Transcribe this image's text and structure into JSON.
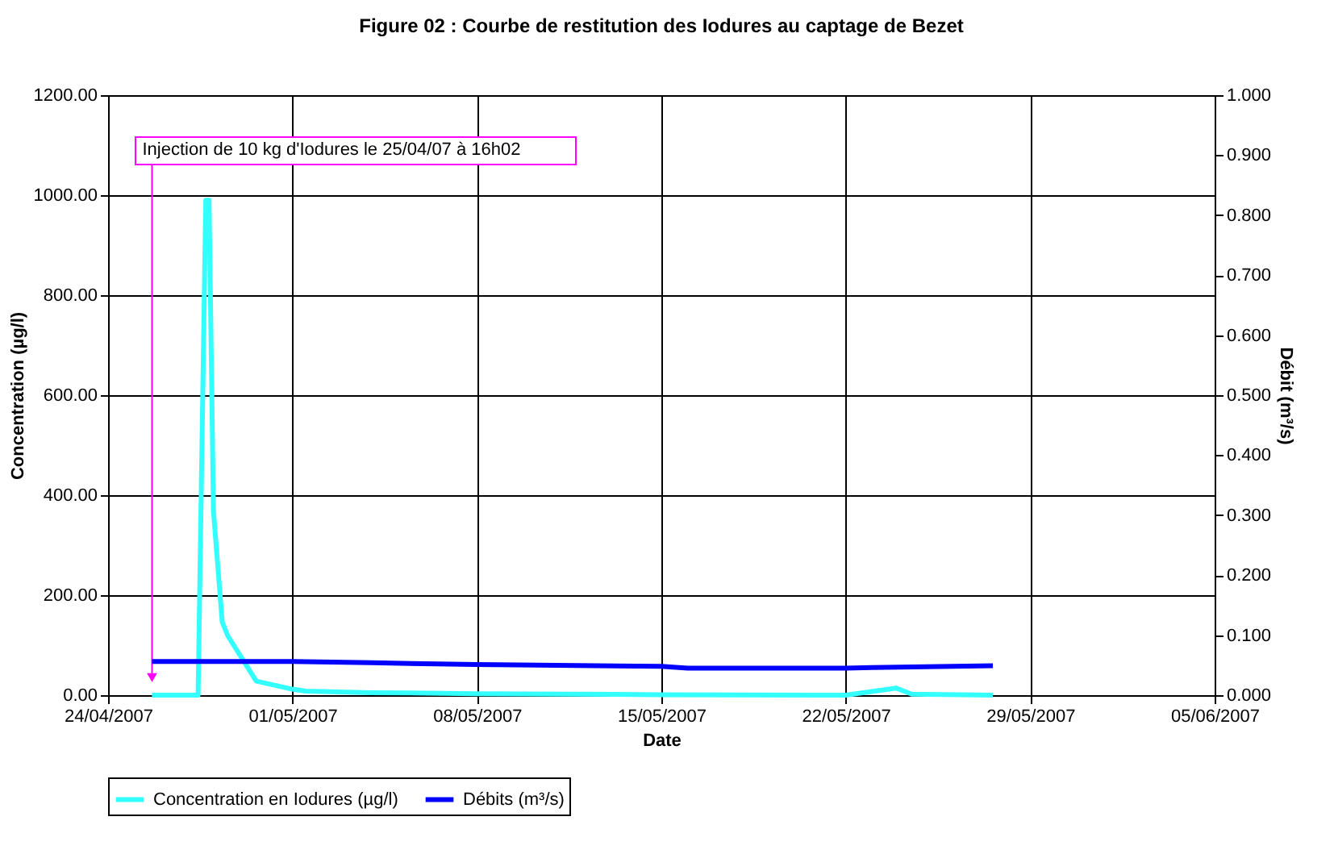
{
  "chart_data": {
    "type": "line",
    "title": "Figure 02 : Courbe de restitution des Iodures au captage de Bezet",
    "xlabel": "Date",
    "ylabel": "Concentration (µg/l)",
    "y2label": "Débit (m³/s)",
    "series": [
      {
        "name": "Concentration en Iodures (µg/l)",
        "color": "#33ffff",
        "x": [
          "2007-04-25T16:00",
          "2007-04-27T10:00",
          "2007-04-27T17:00",
          "2007-04-27T20:00",
          "2007-04-28T00:00",
          "2007-04-28T08:00",
          "2007-04-28T13:00",
          "2007-04-29T15:00",
          "2007-05-01T00:00",
          "2007-05-01T12:00",
          "2007-05-04T00:00",
          "2007-05-08T00:00",
          "2007-05-15T00:00",
          "2007-05-22T00:00",
          "2007-05-23T22:00",
          "2007-05-24T12:00",
          "2007-05-27T14:00"
        ],
        "values": [
          0,
          0,
          990,
          990,
          368,
          146,
          119,
          28,
          12,
          8,
          5,
          3,
          1,
          0,
          14,
          2,
          0
        ]
      },
      {
        "name": "Débits (m³/s)",
        "color": "#0000ff",
        "axis": "y2",
        "x": [
          "2007-04-25T16:00",
          "2007-05-01T00:00",
          "2007-05-04T00:00",
          "2007-05-08T00:00",
          "2007-05-15T00:00",
          "2007-05-16T00:00",
          "2007-05-22T00:00",
          "2007-05-23T00:00",
          "2007-05-27T14:00"
        ],
        "values": [
          0.056,
          0.056,
          0.054,
          0.051,
          0.048,
          0.045,
          0.045,
          0.046,
          0.049
        ]
      }
    ],
    "xlim": [
      "2007-04-24",
      "2007-06-05"
    ],
    "xticks": [
      {
        "value": "2007-04-24",
        "label": "24/04/2007"
      },
      {
        "value": "2007-05-01",
        "label": "01/05/2007"
      },
      {
        "value": "2007-05-08",
        "label": "08/05/2007"
      },
      {
        "value": "2007-05-15",
        "label": "15/05/2007"
      },
      {
        "value": "2007-05-22",
        "label": "22/05/2007"
      },
      {
        "value": "2007-05-29",
        "label": "29/05/2007"
      },
      {
        "value": "2007-06-05",
        "label": "05/06/2007"
      }
    ],
    "ylim": [
      0,
      1200
    ],
    "yticks": [
      {
        "value": 0,
        "label": "0.00"
      },
      {
        "value": 200,
        "label": "200.00"
      },
      {
        "value": 400,
        "label": "400.00"
      },
      {
        "value": 600,
        "label": "600.00"
      },
      {
        "value": 800,
        "label": "800.00"
      },
      {
        "value": 1000,
        "label": "1000.00"
      },
      {
        "value": 1200,
        "label": "1200.00"
      }
    ],
    "y2lim": [
      0,
      1
    ],
    "y2ticks": [
      {
        "value": 0,
        "label": "0.000"
      },
      {
        "value": 0.1,
        "label": "0.100"
      },
      {
        "value": 0.2,
        "label": "0.200"
      },
      {
        "value": 0.3,
        "label": "0.300"
      },
      {
        "value": 0.4,
        "label": "0.400"
      },
      {
        "value": 0.5,
        "label": "0.500"
      },
      {
        "value": 0.6,
        "label": "0.600"
      },
      {
        "value": 0.7,
        "label": "0.700"
      },
      {
        "value": 0.8,
        "label": "0.800"
      },
      {
        "value": 0.9,
        "label": "0.900"
      },
      {
        "value": 1,
        "label": "1.000"
      }
    ],
    "annotations": [
      {
        "text": "Injection de 10 kg d'Iodures le 25/04/07 à 16h02",
        "x": "2007-04-25T16:02",
        "y": 35
      }
    ],
    "grid": true,
    "legend": "bottom",
    "marker": "none",
    "line_style": "solid"
  }
}
